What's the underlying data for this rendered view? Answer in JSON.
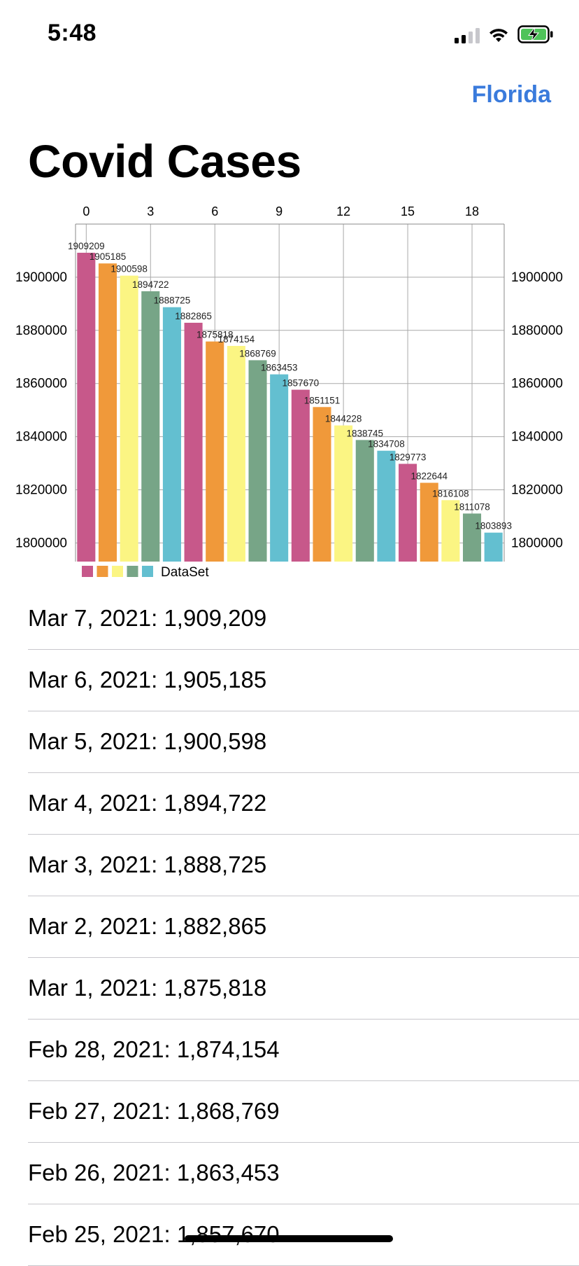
{
  "status_bar": {
    "time": "5:48"
  },
  "header": {
    "nav_link": "Florida",
    "title": "Covid Cases"
  },
  "colors": {
    "accent": "#3a7bdc",
    "bars": [
      "#c7588a",
      "#f0993a",
      "#fbf583",
      "#77a587",
      "#63bfd0"
    ]
  },
  "chart_data": {
    "type": "bar",
    "x": [
      0,
      1,
      2,
      3,
      4,
      5,
      6,
      7,
      8,
      9,
      10,
      11,
      12,
      13,
      14,
      15,
      16,
      17,
      18,
      19
    ],
    "values": [
      1909209,
      1905185,
      1900598,
      1894722,
      1888725,
      1882865,
      1875818,
      1874154,
      1868769,
      1863453,
      1857670,
      1851151,
      1844228,
      1838745,
      1834708,
      1829773,
      1822644,
      1816108,
      1811078,
      1803893
    ],
    "data_labels": [
      "1909209",
      "1905185",
      "1900598",
      "1894722",
      "1888725",
      "1882865",
      "1875818",
      "1874154",
      "1868769",
      "1863453",
      "1857670",
      "1851151",
      "1844228",
      "1838745",
      "1834708",
      "1829773",
      "1822644",
      "1816108",
      "1811078",
      "1803893"
    ],
    "x_ticks": [
      "0",
      "3",
      "6",
      "9",
      "12",
      "15",
      "18"
    ],
    "x_tick_values": [
      0,
      3,
      6,
      9,
      12,
      15,
      18
    ],
    "y_ticks": [
      "1800000",
      "1820000",
      "1840000",
      "1860000",
      "1880000",
      "1900000"
    ],
    "y_tick_values": [
      1800000,
      1820000,
      1840000,
      1860000,
      1880000,
      1900000
    ],
    "xlim": [
      -0.5,
      19.5
    ],
    "ylim": [
      1793000,
      1920000
    ],
    "legend": {
      "label": "DataSet",
      "placement": "bottom-left"
    },
    "grid": true,
    "x_axis_position": "top",
    "y_axis": "both"
  },
  "list": {
    "items": [
      "Mar 7, 2021: 1,909,209",
      "Mar 6, 2021: 1,905,185",
      "Mar 5, 2021: 1,900,598",
      "Mar 4, 2021: 1,894,722",
      "Mar 3, 2021: 1,888,725",
      "Mar 2, 2021: 1,882,865",
      "Mar 1, 2021: 1,875,818",
      "Feb 28, 2021: 1,874,154",
      "Feb 27, 2021: 1,868,769",
      "Feb 26, 2021: 1,863,453",
      "Feb 25, 2021: 1,857,670"
    ]
  }
}
